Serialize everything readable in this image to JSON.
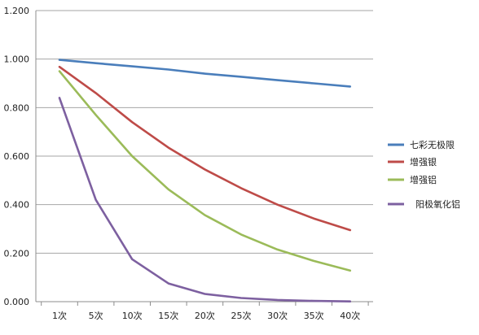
{
  "chart_data": {
    "type": "line",
    "categories": [
      "1次",
      "5次",
      "10次",
      "15次",
      "20次",
      "25次",
      "30次",
      "35次",
      "40次"
    ],
    "y_ticks": [
      "0.000",
      "0.200",
      "0.400",
      "0.600",
      "0.800",
      "1.000",
      "1.200"
    ],
    "ylim": [
      0,
      1.2
    ],
    "grid": "horizontal",
    "legend_position": "right",
    "series": [
      {
        "name": "七彩无极限",
        "color": "#4a7ebb",
        "values": [
          0.997,
          0.983,
          0.97,
          0.957,
          0.94,
          0.927,
          0.913,
          0.9,
          0.887
        ]
      },
      {
        "name": "增强银",
        "color": "#be4b48",
        "values": [
          0.968,
          0.86,
          0.74,
          0.635,
          0.545,
          0.468,
          0.4,
          0.343,
          0.295
        ]
      },
      {
        "name": "增强铝",
        "color": "#9bbb59",
        "values": [
          0.95,
          0.77,
          0.6,
          0.463,
          0.357,
          0.277,
          0.215,
          0.168,
          0.128
        ]
      },
      {
        "name": "阳极氧化铝",
        "color": "#7d60a0",
        "values": [
          0.84,
          0.42,
          0.175,
          0.075,
          0.032,
          0.015,
          0.007,
          0.003,
          0.001
        ]
      }
    ]
  }
}
